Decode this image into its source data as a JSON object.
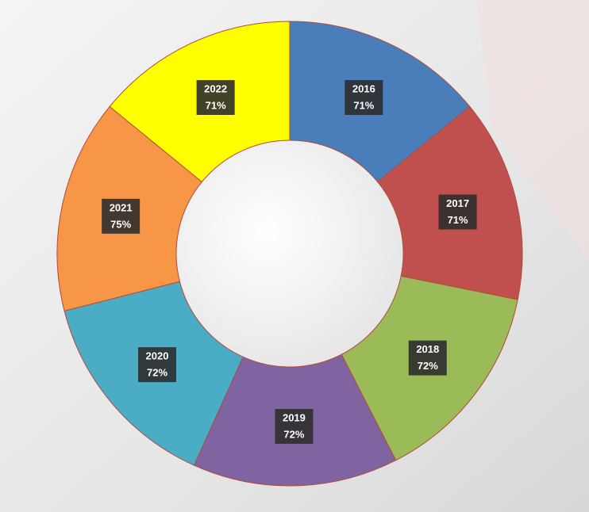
{
  "chart_data": {
    "type": "donut",
    "categories": [
      "2016",
      "2017",
      "2018",
      "2019",
      "2020",
      "2021",
      "2022"
    ],
    "values": [
      71,
      71,
      72,
      72,
      72,
      75,
      71
    ],
    "value_labels": [
      "71%",
      "71%",
      "72%",
      "72%",
      "72%",
      "75%",
      "71%"
    ],
    "colors": [
      "#4a7ebb",
      "#c0504d",
      "#9bbb59",
      "#8064a2",
      "#4bacc6",
      "#f79646",
      "#ffff00"
    ]
  }
}
